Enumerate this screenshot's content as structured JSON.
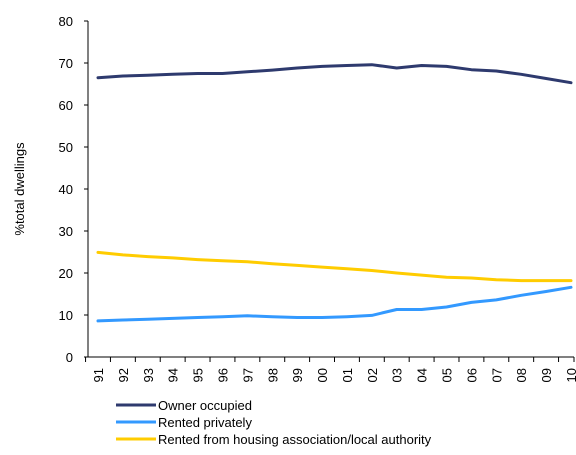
{
  "chart_data": {
    "type": "line",
    "title": "",
    "xlabel": "",
    "ylabel": "%total dwellings",
    "ylim": [
      0,
      80
    ],
    "yticks": [
      0,
      10,
      20,
      30,
      40,
      50,
      60,
      70,
      80
    ],
    "grid": false,
    "legend_position": "bottom",
    "categories": [
      "91",
      "92",
      "93",
      "94",
      "95",
      "96",
      "97",
      "98",
      "99",
      "00",
      "01",
      "02",
      "03",
      "04",
      "05",
      "06",
      "07",
      "08",
      "09",
      "10"
    ],
    "series": [
      {
        "name": "Owner occupied",
        "color": "#2e3a6e",
        "values": [
          66.5,
          66.9,
          67.1,
          67.3,
          67.5,
          67.5,
          67.9,
          68.3,
          68.8,
          69.2,
          69.4,
          69.6,
          68.8,
          69.4,
          69.2,
          68.4,
          68.1,
          67.3,
          66.3,
          65.3
        ]
      },
      {
        "name": "Rented privately",
        "color": "#3399ff",
        "values": [
          8.6,
          8.8,
          9.0,
          9.2,
          9.4,
          9.6,
          9.8,
          9.6,
          9.4,
          9.4,
          9.6,
          9.9,
          11.3,
          11.3,
          11.9,
          13.0,
          13.6,
          14.7,
          15.6,
          16.6
        ]
      },
      {
        "name": "Rented from housing association/local authority",
        "color": "#ffcc00",
        "values": [
          24.9,
          24.3,
          23.9,
          23.6,
          23.2,
          22.9,
          22.7,
          22.2,
          21.8,
          21.4,
          21.0,
          20.6,
          20.0,
          19.5,
          19.0,
          18.8,
          18.4,
          18.2,
          18.2,
          18.2
        ]
      }
    ]
  }
}
